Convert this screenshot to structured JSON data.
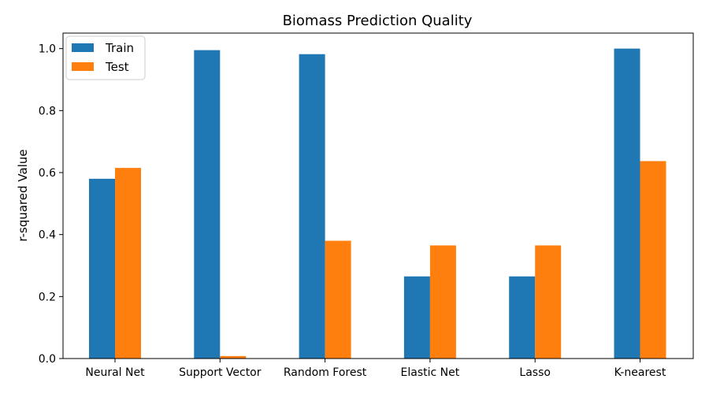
{
  "chart_data": {
    "type": "bar",
    "title": "Biomass Prediction Quality",
    "xlabel": "",
    "ylabel": "r-squared Value",
    "categories": [
      "Neural Net",
      "Support Vector",
      "Random Forest",
      "Elastic Net",
      "Lasso",
      "K-nearest"
    ],
    "series": [
      {
        "name": "Train",
        "color": "#1f77b4",
        "values": [
          0.58,
          0.995,
          0.982,
          0.265,
          0.265,
          1.0
        ]
      },
      {
        "name": "Test",
        "color": "#ff7f0e",
        "values": [
          0.615,
          0.008,
          0.38,
          0.365,
          0.365,
          0.637
        ]
      }
    ],
    "ylim": [
      0,
      1.05
    ],
    "yticks": [
      "0.0",
      "0.2",
      "0.4",
      "0.6",
      "0.8",
      "1.0"
    ],
    "grid": false,
    "legend_position": "top-left"
  }
}
